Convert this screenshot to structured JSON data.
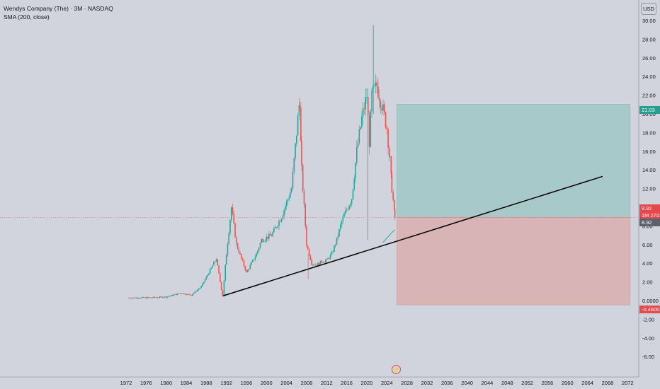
{
  "legend": {
    "title": "Wendys Company (The) · 3M · NASDAQ",
    "indicator": "SMA (200, close)"
  },
  "currency_label": "USD",
  "price_tags": {
    "target": "21.03",
    "last_price": "8.92",
    "countdown": "1M 27d",
    "entry": "8.92",
    "stop": "-0.4600"
  },
  "colors": {
    "background": "#d1d4dc",
    "up_candle": "#26a69a",
    "down_candle": "#ef5350",
    "profit_zone": "#a8c9c9",
    "loss_zone": "#d8b4b6",
    "trendline": "#000000",
    "sma": "#26a69a"
  },
  "chart_data": {
    "type": "candlestick",
    "symbol": "Wendys Company (The)",
    "interval": "3M",
    "exchange": "NASDAQ",
    "x_ticks": [
      "1972",
      "1976",
      "1980",
      "1984",
      "1988",
      "1992",
      "1996",
      "2000",
      "2004",
      "2008",
      "2012",
      "2016",
      "2020",
      "2024",
      "2028",
      "2032",
      "2036",
      "2040",
      "2044",
      "2048",
      "2052",
      "2056",
      "2060",
      "2064",
      "2068",
      "2072"
    ],
    "y_ticks": [
      "30.00",
      "28.00",
      "26.00",
      "24.00",
      "22.00",
      "20.00",
      "18.00",
      "16.00",
      "14.00",
      "12.00",
      "10.00",
      "8.00",
      "6.00",
      "4.00",
      "2.00",
      "0.0000",
      "-2.00",
      "-4.00",
      "-6.00"
    ],
    "ylim": [
      -6.5,
      31
    ],
    "series": [
      {
        "name": "price",
        "x": [
          1972.5,
          1976,
          1980,
          1983,
          1985,
          1987,
          1988.5,
          1990,
          1991,
          1991.3,
          1992,
          1993,
          1994,
          1996,
          1998,
          1999,
          2001,
          2003,
          2005,
          2006,
          2006.6,
          2007,
          2008,
          2009,
          2010,
          2011,
          2012,
          2013,
          2014,
          2015,
          2017,
          2018,
          2019,
          2020,
          2020.5,
          2021,
          2022,
          2023,
          2024,
          2024.6,
          2025,
          2025.6
        ],
        "close": [
          0.3,
          0.3,
          0.4,
          0.8,
          0.6,
          1.5,
          3.0,
          4.5,
          1.2,
          0.5,
          5.0,
          10.0,
          6.0,
          3.0,
          5.0,
          6.5,
          7.0,
          9.0,
          12.0,
          18.0,
          21.5,
          14.0,
          6.0,
          4.0,
          3.8,
          4.2,
          4.3,
          5.0,
          6.5,
          8.5,
          11.0,
          16.0,
          19.5,
          22.0,
          17.0,
          22.0,
          23.0,
          21.0,
          18.5,
          15.0,
          12.0,
          8.92
        ]
      },
      {
        "name": "SMA (200, close)",
        "x": [
          2023.2,
          2024,
          2025,
          2025.6
        ],
        "y": [
          6.2,
          6.7,
          7.3,
          7.6
        ]
      }
    ],
    "annotations": {
      "trendline": {
        "from": [
          1991.3,
          0.5
        ],
        "to": [
          2067,
          13.3
        ]
      },
      "position": {
        "start_x": 2026,
        "end_x": 2072.5,
        "entry": 8.92,
        "target": 21.03,
        "stop": -0.46
      },
      "spike_high": {
        "x": 2021.3,
        "value": 29.5
      }
    }
  }
}
